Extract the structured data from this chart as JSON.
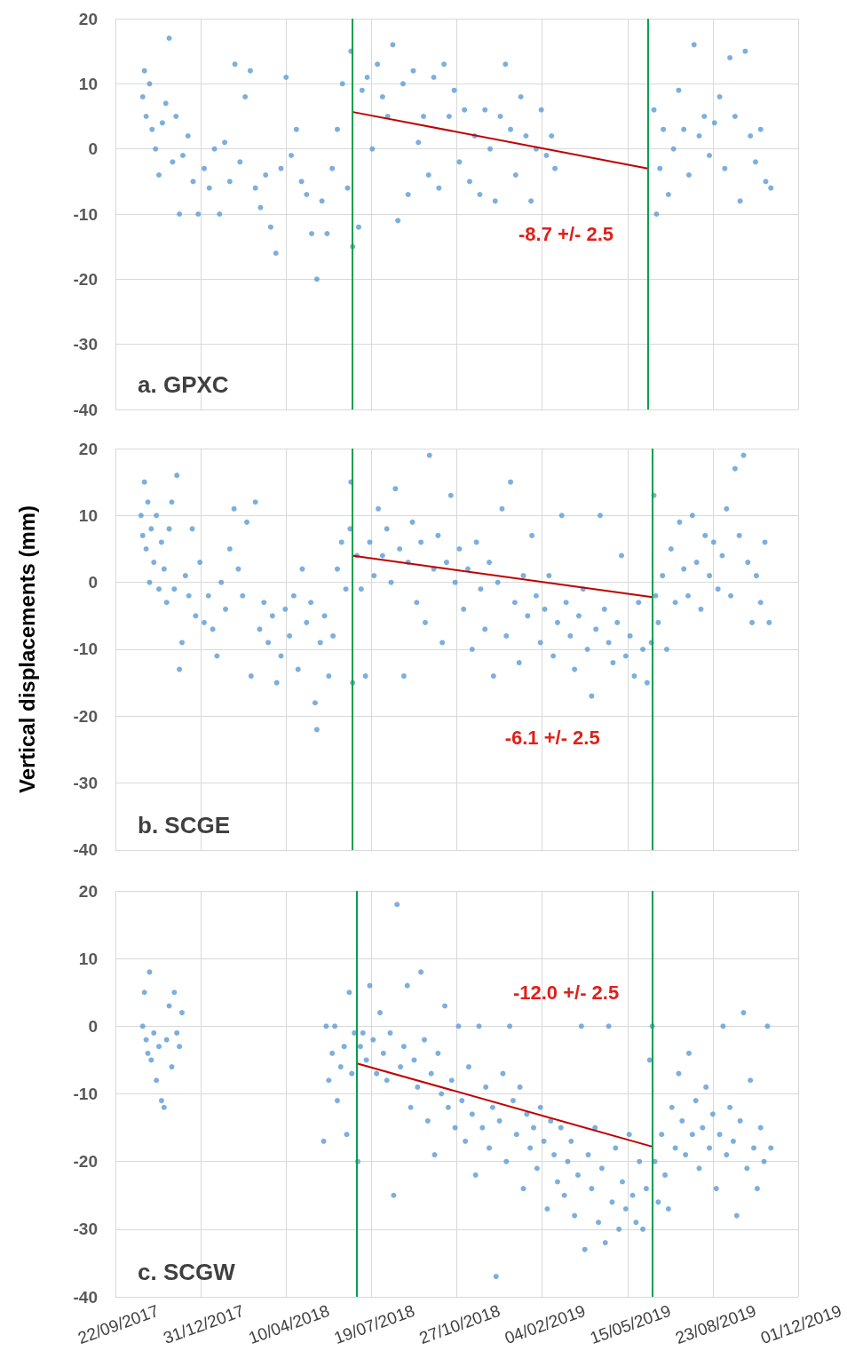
{
  "chart_data": [
    {
      "type": "scatter",
      "title": "a. GPXC",
      "marker": "circle",
      "grid": true,
      "tick_labels": "y",
      "xlim": [
        "2017-09-22",
        "2019-12-01"
      ],
      "xticks": [
        {
          "value": "2017-09-22",
          "label": null
        },
        {
          "value": "2017-12-31",
          "label": null
        },
        {
          "value": "2018-04-10",
          "label": null
        },
        {
          "value": "2018-07-19",
          "label": null
        },
        {
          "value": "2018-10-27",
          "label": null
        },
        {
          "value": "2019-02-04",
          "label": null
        },
        {
          "value": "2019-05-15",
          "label": null
        },
        {
          "value": "2019-08-23",
          "label": null
        },
        {
          "value": "2019-12-01",
          "label": null
        }
      ],
      "ylim": [
        -40,
        20
      ],
      "yticks": [
        -40,
        -30,
        -20,
        -10,
        0,
        10,
        20
      ],
      "ref_lines": [
        {
          "axis": "x",
          "value": "2018-06-26",
          "color": "#00a050"
        },
        {
          "axis": "x",
          "value": "2019-06-08",
          "color": "#00a050"
        }
      ],
      "annotations": [
        "-8.7 +/- 2.5"
      ],
      "series": [
        {
          "color": "#5b9bd5",
          "x": [
            "2017-10-24",
            "2017-10-26",
            "2017-10-28",
            "2017-11-01",
            "2017-11-04",
            "2017-11-08",
            "2017-11-12",
            "2017-11-16",
            "2017-11-20",
            "2017-11-24",
            "2017-11-28",
            "2017-12-02",
            "2017-12-06",
            "2017-12-10",
            "2017-12-16",
            "2017-12-22",
            "2017-12-28",
            "2018-01-04",
            "2018-01-10",
            "2018-01-16",
            "2018-01-22",
            "2018-01-28",
            "2018-02-03",
            "2018-02-09",
            "2018-02-15",
            "2018-02-21",
            "2018-02-27",
            "2018-03-05",
            "2018-03-11",
            "2018-03-17",
            "2018-03-23",
            "2018-03-29",
            "2018-04-04",
            "2018-04-10",
            "2018-04-16",
            "2018-04-22",
            "2018-04-28",
            "2018-05-04",
            "2018-05-10",
            "2018-05-16",
            "2018-05-22",
            "2018-05-28",
            "2018-06-03",
            "2018-06-09",
            "2018-06-15",
            "2018-06-21",
            "2018-06-25",
            "2018-06-27",
            "2018-07-04",
            "2018-07-08",
            "2018-07-14",
            "2018-07-20",
            "2018-07-26",
            "2018-08-01",
            "2018-08-07",
            "2018-08-13",
            "2018-08-19",
            "2018-08-25",
            "2018-08-31",
            "2018-09-06",
            "2018-09-12",
            "2018-09-18",
            "2018-09-24",
            "2018-09-30",
            "2018-10-06",
            "2018-10-12",
            "2018-10-18",
            "2018-10-24",
            "2018-10-30",
            "2018-11-05",
            "2018-11-11",
            "2018-11-17",
            "2018-11-23",
            "2018-11-29",
            "2018-12-05",
            "2018-12-11",
            "2018-12-17",
            "2018-12-23",
            "2018-12-29",
            "2019-01-04",
            "2019-01-10",
            "2019-01-16",
            "2019-01-22",
            "2019-01-28",
            "2019-02-03",
            "2019-02-09",
            "2019-02-15",
            "2019-02-19",
            "2019-06-15",
            "2019-06-18",
            "2019-06-22",
            "2019-06-26",
            "2019-07-02",
            "2019-07-08",
            "2019-07-14",
            "2019-07-20",
            "2019-07-26",
            "2019-08-01",
            "2019-08-07",
            "2019-08-13",
            "2019-08-19",
            "2019-08-25",
            "2019-08-31",
            "2019-09-06",
            "2019-09-12",
            "2019-09-18",
            "2019-09-24",
            "2019-09-30",
            "2019-10-06",
            "2019-10-12",
            "2019-10-18",
            "2019-10-24",
            "2019-10-30"
          ],
          "values": [
            8,
            12,
            5,
            10,
            3,
            0,
            -4,
            4,
            7,
            17,
            -2,
            5,
            -10,
            -1,
            2,
            -5,
            -10,
            -3,
            -6,
            0,
            -10,
            1,
            -5,
            13,
            -2,
            8,
            12,
            -6,
            -9,
            -4,
            -12,
            -16,
            -3,
            11,
            -1,
            3,
            -5,
            -7,
            -13,
            -20,
            -8,
            -13,
            -3,
            3,
            10,
            -6,
            15,
            -15,
            -12,
            9,
            11,
            0,
            13,
            8,
            5,
            16,
            -11,
            10,
            -7,
            12,
            1,
            5,
            -4,
            11,
            -6,
            13,
            5,
            9,
            -2,
            6,
            -5,
            2,
            -7,
            6,
            0,
            -8,
            5,
            13,
            3,
            -4,
            8,
            2,
            -8,
            0,
            6,
            -1,
            2,
            -3,
            6,
            -10,
            -3,
            3,
            -7,
            0,
            9,
            3,
            -4,
            16,
            2,
            5,
            -1,
            4,
            8,
            -3,
            14,
            5,
            -8,
            15,
            2,
            -2,
            3,
            -5,
            -6
          ]
        },
        {
          "type": "line",
          "marker": "none",
          "color": "#c00000",
          "x": [
            "2018-06-26",
            "2019-06-08"
          ],
          "values": [
            5.7,
            -3
          ]
        }
      ]
    },
    {
      "type": "scatter",
      "title": "b. SCGE",
      "ylabel": "Vertical displacements (mm)",
      "marker": "circle",
      "grid": true,
      "tick_labels": "y",
      "xlim": [
        "2017-09-22",
        "2019-12-01"
      ],
      "xticks": [
        {
          "value": "2017-09-22",
          "label": null
        },
        {
          "value": "2017-12-31",
          "label": null
        },
        {
          "value": "2018-04-10",
          "label": null
        },
        {
          "value": "2018-07-19",
          "label": null
        },
        {
          "value": "2018-10-27",
          "label": null
        },
        {
          "value": "2019-02-04",
          "label": null
        },
        {
          "value": "2019-05-15",
          "label": null
        },
        {
          "value": "2019-08-23",
          "label": null
        },
        {
          "value": "2019-12-01",
          "label": null
        }
      ],
      "ylim": [
        -40,
        20
      ],
      "yticks": [
        -40,
        -30,
        -20,
        -10,
        0,
        10,
        20
      ],
      "ref_lines": [
        {
          "axis": "x",
          "value": "2018-06-26",
          "color": "#00a050"
        },
        {
          "axis": "x",
          "value": "2019-06-13",
          "color": "#00a050"
        }
      ],
      "annotations": [
        "-6.1 +/- 2.5"
      ],
      "series": [
        {
          "color": "#5b9bd5",
          "x": [
            "2017-10-22",
            "2017-10-24",
            "2017-10-26",
            "2017-10-28",
            "2017-10-30",
            "2017-11-01",
            "2017-11-03",
            "2017-11-06",
            "2017-11-09",
            "2017-11-12",
            "2017-11-15",
            "2017-11-18",
            "2017-11-21",
            "2017-11-24",
            "2017-11-27",
            "2017-11-30",
            "2017-12-03",
            "2017-12-06",
            "2017-12-09",
            "2017-12-13",
            "2017-12-17",
            "2017-12-21",
            "2017-12-25",
            "2017-12-30",
            "2018-01-04",
            "2018-01-09",
            "2018-01-14",
            "2018-01-19",
            "2018-01-24",
            "2018-01-29",
            "2018-02-03",
            "2018-02-08",
            "2018-02-13",
            "2018-02-18",
            "2018-02-23",
            "2018-02-28",
            "2018-03-05",
            "2018-03-10",
            "2018-03-15",
            "2018-03-20",
            "2018-03-25",
            "2018-03-30",
            "2018-04-04",
            "2018-04-09",
            "2018-04-14",
            "2018-04-19",
            "2018-04-24",
            "2018-04-29",
            "2018-05-04",
            "2018-05-09",
            "2018-05-14",
            "2018-05-16",
            "2018-05-20",
            "2018-05-25",
            "2018-05-30",
            "2018-06-04",
            "2018-06-09",
            "2018-06-14",
            "2018-06-19",
            "2018-06-24",
            "2018-06-25",
            "2018-06-27",
            "2018-07-02",
            "2018-07-07",
            "2018-07-12",
            "2018-07-17",
            "2018-07-22",
            "2018-07-27",
            "2018-08-01",
            "2018-08-06",
            "2018-08-11",
            "2018-08-16",
            "2018-08-21",
            "2018-08-26",
            "2018-08-31",
            "2018-09-05",
            "2018-09-10",
            "2018-09-15",
            "2018-09-20",
            "2018-09-25",
            "2018-09-30",
            "2018-10-05",
            "2018-10-10",
            "2018-10-15",
            "2018-10-20",
            "2018-10-25",
            "2018-10-30",
            "2018-11-04",
            "2018-11-09",
            "2018-11-14",
            "2018-11-19",
            "2018-11-24",
            "2018-11-29",
            "2018-12-04",
            "2018-12-09",
            "2018-12-14",
            "2018-12-19",
            "2018-12-24",
            "2018-12-29",
            "2019-01-03",
            "2019-01-08",
            "2019-01-13",
            "2019-01-18",
            "2019-01-23",
            "2019-01-28",
            "2019-02-02",
            "2019-02-07",
            "2019-02-12",
            "2019-02-17",
            "2019-02-22",
            "2019-02-27",
            "2019-03-04",
            "2019-03-09",
            "2019-03-14",
            "2019-03-19",
            "2019-03-24",
            "2019-03-29",
            "2019-04-03",
            "2019-04-08",
            "2019-04-13",
            "2019-04-18",
            "2019-04-23",
            "2019-04-28",
            "2019-05-03",
            "2019-05-08",
            "2019-05-13",
            "2019-05-18",
            "2019-05-23",
            "2019-05-28",
            "2019-06-02",
            "2019-06-07",
            "2019-06-12",
            "2019-06-15",
            "2019-06-17",
            "2019-06-20",
            "2019-06-25",
            "2019-06-30",
            "2019-07-05",
            "2019-07-10",
            "2019-07-15",
            "2019-07-20",
            "2019-07-25",
            "2019-07-30",
            "2019-08-04",
            "2019-08-09",
            "2019-08-14",
            "2019-08-19",
            "2019-08-24",
            "2019-08-29",
            "2019-09-03",
            "2019-09-08",
            "2019-09-13",
            "2019-09-18",
            "2019-09-23",
            "2019-09-28",
            "2019-10-03",
            "2019-10-08",
            "2019-10-13",
            "2019-10-18",
            "2019-10-23",
            "2019-10-28"
          ],
          "values": [
            10,
            7,
            15,
            5,
            12,
            0,
            8,
            3,
            10,
            -1,
            6,
            2,
            -3,
            8,
            12,
            -1,
            16,
            -13,
            -9,
            1,
            -2,
            8,
            -5,
            3,
            -6,
            -2,
            -7,
            -11,
            0,
            -4,
            5,
            11,
            2,
            -2,
            9,
            -14,
            12,
            -7,
            -3,
            -9,
            -5,
            -15,
            -11,
            -4,
            -8,
            -2,
            -13,
            2,
            -6,
            -3,
            -18,
            -22,
            -9,
            -5,
            -14,
            -8,
            2,
            6,
            -1,
            8,
            15,
            -15,
            4,
            -1,
            -14,
            6,
            1,
            11,
            4,
            8,
            0,
            14,
            5,
            -14,
            3,
            9,
            -3,
            6,
            -6,
            19,
            2,
            7,
            -9,
            3,
            13,
            0,
            5,
            -4,
            2,
            -10,
            6,
            -1,
            -7,
            3,
            -14,
            0,
            11,
            -8,
            15,
            -3,
            -12,
            1,
            -5,
            7,
            -2,
            -9,
            -4,
            1,
            -11,
            -6,
            10,
            -3,
            -8,
            -13,
            -5,
            -1,
            -10,
            -17,
            -7,
            10,
            -4,
            -9,
            -12,
            -6,
            4,
            -11,
            -8,
            -14,
            -3,
            -10,
            -15,
            -9,
            13,
            -2,
            -6,
            1,
            -10,
            5,
            -3,
            9,
            2,
            -2,
            10,
            3,
            -4,
            7,
            1,
            6,
            -1,
            4,
            11,
            -2,
            17,
            7,
            19,
            3,
            -6,
            1,
            -3,
            6,
            -6
          ]
        },
        {
          "type": "line",
          "marker": "none",
          "color": "#c00000",
          "x": [
            "2018-06-26",
            "2019-06-13"
          ],
          "values": [
            4,
            -2.2
          ]
        }
      ]
    },
    {
      "type": "scatter",
      "title": "c. SCGW",
      "marker": "circle",
      "grid": true,
      "xlim": [
        "2017-09-22",
        "2019-12-01"
      ],
      "xticks": [
        {
          "value": "2017-09-22",
          "label": "22/09/2017"
        },
        {
          "value": "2017-12-31",
          "label": "31/12/2017"
        },
        {
          "value": "2018-04-10",
          "label": "10/04/2018"
        },
        {
          "value": "2018-07-19",
          "label": "19/07/2018"
        },
        {
          "value": "2018-10-27",
          "label": "27/10/2018"
        },
        {
          "value": "2019-02-04",
          "label": "04/02/2019"
        },
        {
          "value": "2019-05-15",
          "label": "15/05/2019"
        },
        {
          "value": "2019-08-23",
          "label": "23/08/2019"
        },
        {
          "value": "2019-12-01",
          "label": "01/12/2019"
        }
      ],
      "ylim": [
        -40,
        20
      ],
      "yticks": [
        -40,
        -30,
        -20,
        -10,
        0,
        10,
        20
      ],
      "ref_lines": [
        {
          "axis": "x",
          "value": "2018-07-02",
          "color": "#00a050"
        },
        {
          "axis": "x",
          "value": "2019-06-13",
          "color": "#00a050"
        }
      ],
      "annotations": [
        "-12.0 +/- 2.5"
      ],
      "series": [
        {
          "color": "#5b9bd5",
          "x": [
            "2017-10-24",
            "2017-10-26",
            "2017-10-28",
            "2017-10-30",
            "2017-11-01",
            "2017-11-03",
            "2017-11-06",
            "2017-11-09",
            "2017-11-12",
            "2017-11-15",
            "2017-11-18",
            "2017-11-21",
            "2017-11-24",
            "2017-11-27",
            "2017-11-30",
            "2017-12-03",
            "2017-12-06",
            "2017-12-09",
            "2018-05-24",
            "2018-05-27",
            "2018-05-30",
            "2018-06-03",
            "2018-06-06",
            "2018-06-09",
            "2018-06-13",
            "2018-06-17",
            "2018-06-20",
            "2018-06-23",
            "2018-06-26",
            "2018-06-29",
            "2018-07-03",
            "2018-07-06",
            "2018-07-09",
            "2018-07-13",
            "2018-07-17",
            "2018-07-21",
            "2018-07-25",
            "2018-07-29",
            "2018-08-02",
            "2018-08-06",
            "2018-08-10",
            "2018-08-14",
            "2018-08-18",
            "2018-08-22",
            "2018-08-26",
            "2018-08-30",
            "2018-09-03",
            "2018-09-07",
            "2018-09-11",
            "2018-09-15",
            "2018-09-19",
            "2018-09-23",
            "2018-09-27",
            "2018-10-01",
            "2018-10-05",
            "2018-10-09",
            "2018-10-13",
            "2018-10-17",
            "2018-10-21",
            "2018-10-25",
            "2018-10-29",
            "2018-11-02",
            "2018-11-06",
            "2018-11-10",
            "2018-11-14",
            "2018-11-18",
            "2018-11-22",
            "2018-11-26",
            "2018-11-30",
            "2018-12-04",
            "2018-12-08",
            "2018-12-12",
            "2018-12-16",
            "2018-12-20",
            "2018-12-24",
            "2018-12-28",
            "2019-01-01",
            "2019-01-05",
            "2019-01-09",
            "2019-01-13",
            "2019-01-17",
            "2019-01-21",
            "2019-01-25",
            "2019-01-29",
            "2019-02-02",
            "2019-02-06",
            "2019-02-10",
            "2019-02-14",
            "2019-02-18",
            "2019-02-22",
            "2019-02-26",
            "2019-03-02",
            "2019-03-06",
            "2019-03-10",
            "2019-03-14",
            "2019-03-18",
            "2019-03-22",
            "2019-03-26",
            "2019-03-30",
            "2019-04-03",
            "2019-04-07",
            "2019-04-11",
            "2019-04-15",
            "2019-04-19",
            "2019-04-23",
            "2019-04-27",
            "2019-05-01",
            "2019-05-05",
            "2019-05-09",
            "2019-05-13",
            "2019-05-17",
            "2019-05-21",
            "2019-05-25",
            "2019-05-29",
            "2019-06-02",
            "2019-06-06",
            "2019-06-10",
            "2019-06-13",
            "2019-06-16",
            "2019-06-20",
            "2019-06-24",
            "2019-06-28",
            "2019-07-02",
            "2019-07-06",
            "2019-07-10",
            "2019-07-14",
            "2019-07-18",
            "2019-07-22",
            "2019-07-26",
            "2019-07-30",
            "2019-08-03",
            "2019-08-07",
            "2019-08-11",
            "2019-08-15",
            "2019-08-19",
            "2019-08-23",
            "2019-08-27",
            "2019-08-31",
            "2019-09-04",
            "2019-09-08",
            "2019-09-12",
            "2019-09-16",
            "2019-09-20",
            "2019-09-24",
            "2019-09-28",
            "2019-10-02",
            "2019-10-06",
            "2019-10-10",
            "2019-10-14",
            "2019-10-18",
            "2019-10-22",
            "2019-10-26",
            "2019-10-30"
          ],
          "values": [
            0,
            5,
            -2,
            -4,
            8,
            -5,
            -1,
            -8,
            -3,
            -11,
            -12,
            -2,
            3,
            -6,
            5,
            -1,
            -3,
            2,
            -17,
            0,
            -8,
            -4,
            0,
            -11,
            -6,
            -3,
            -16,
            5,
            -7,
            -1,
            -20,
            -3,
            -1,
            -5,
            6,
            -2,
            -7,
            2,
            -4,
            -8,
            -1,
            -25,
            18,
            -6,
            -3,
            6,
            -12,
            -5,
            -9,
            8,
            -2,
            -14,
            -7,
            -19,
            -4,
            -10,
            3,
            -12,
            -8,
            -15,
            0,
            -11,
            -17,
            -6,
            -13,
            -22,
            0,
            -15,
            -9,
            -18,
            -12,
            -37,
            -14,
            -7,
            -20,
            0,
            -11,
            -16,
            -9,
            -24,
            -13,
            -18,
            -15,
            -21,
            -12,
            -17,
            -27,
            -14,
            -19,
            -23,
            -15,
            -25,
            -20,
            -17,
            -28,
            -22,
            0,
            -33,
            -19,
            -24,
            -15,
            -29,
            -21,
            -32,
            0,
            -26,
            -18,
            -30,
            -23,
            -27,
            -16,
            -25,
            -29,
            -20,
            -30,
            -24,
            -5,
            0,
            -20,
            -26,
            -16,
            -22,
            -27,
            -12,
            -18,
            -7,
            -14,
            -19,
            -4,
            -16,
            -11,
            -21,
            -15,
            -9,
            -18,
            -13,
            -24,
            -16,
            0,
            -19,
            -12,
            -17,
            -28,
            -14,
            2,
            -21,
            -8,
            -18,
            -24,
            -15,
            -20,
            0,
            -18
          ]
        },
        {
          "type": "line",
          "marker": "none",
          "color": "#c00000",
          "x": [
            "2018-07-02",
            "2019-06-13"
          ],
          "values": [
            -5.5,
            -17.8
          ]
        }
      ]
    }
  ]
}
